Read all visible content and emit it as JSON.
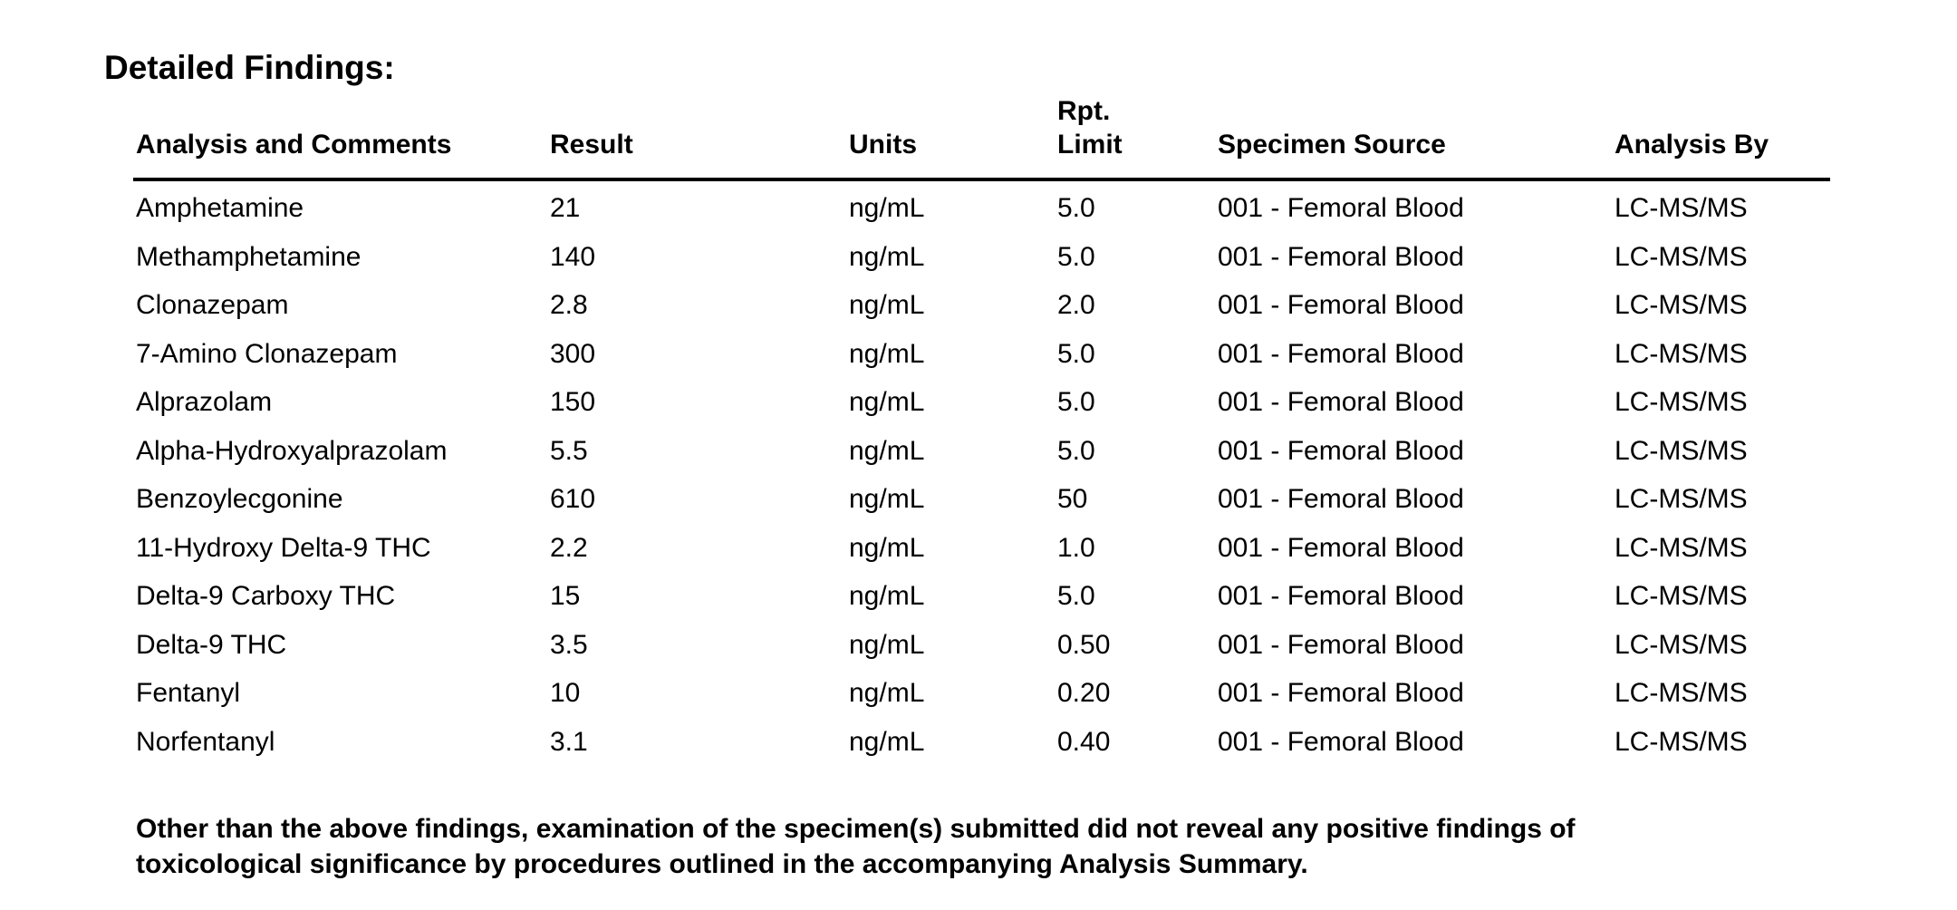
{
  "title": "Detailed Findings:",
  "colors": {
    "background": "#ffffff",
    "text": "#000000",
    "rule": "#000000"
  },
  "table": {
    "headers": {
      "analysis": "Analysis and Comments",
      "result": "Result",
      "units": "Units",
      "rpt_limit_line1": "Rpt.",
      "rpt_limit_line2": "Limit",
      "specimen_source": "Specimen Source",
      "analysis_by": "Analysis By"
    },
    "rows": [
      {
        "analysis": "Amphetamine",
        "result": "21",
        "units": "ng/mL",
        "rpt_limit": "5.0",
        "specimen_source": "001 - Femoral Blood",
        "analysis_by": "LC-MS/MS"
      },
      {
        "analysis": "Methamphetamine",
        "result": "140",
        "units": "ng/mL",
        "rpt_limit": "5.0",
        "specimen_source": "001 - Femoral Blood",
        "analysis_by": "LC-MS/MS"
      },
      {
        "analysis": "Clonazepam",
        "result": "2.8",
        "units": "ng/mL",
        "rpt_limit": "2.0",
        "specimen_source": "001 - Femoral Blood",
        "analysis_by": "LC-MS/MS"
      },
      {
        "analysis": "7-Amino Clonazepam",
        "result": "300",
        "units": "ng/mL",
        "rpt_limit": "5.0",
        "specimen_source": "001 - Femoral Blood",
        "analysis_by": "LC-MS/MS"
      },
      {
        "analysis": "Alprazolam",
        "result": "150",
        "units": "ng/mL",
        "rpt_limit": "5.0",
        "specimen_source": "001 - Femoral Blood",
        "analysis_by": "LC-MS/MS"
      },
      {
        "analysis": "Alpha-Hydroxyalprazolam",
        "result": "5.5",
        "units": "ng/mL",
        "rpt_limit": "5.0",
        "specimen_source": "001 - Femoral Blood",
        "analysis_by": "LC-MS/MS"
      },
      {
        "analysis": "Benzoylecgonine",
        "result": "610",
        "units": "ng/mL",
        "rpt_limit": "50",
        "specimen_source": "001 - Femoral Blood",
        "analysis_by": "LC-MS/MS"
      },
      {
        "analysis": "11-Hydroxy Delta-9 THC",
        "result": "2.2",
        "units": "ng/mL",
        "rpt_limit": "1.0",
        "specimen_source": "001 - Femoral Blood",
        "analysis_by": "LC-MS/MS"
      },
      {
        "analysis": "Delta-9 Carboxy THC",
        "result": "15",
        "units": "ng/mL",
        "rpt_limit": "5.0",
        "specimen_source": "001 - Femoral Blood",
        "analysis_by": "LC-MS/MS"
      },
      {
        "analysis": "Delta-9 THC",
        "result": "3.5",
        "units": "ng/mL",
        "rpt_limit": "0.50",
        "specimen_source": "001 - Femoral Blood",
        "analysis_by": "LC-MS/MS"
      },
      {
        "analysis": "Fentanyl",
        "result": "10",
        "units": "ng/mL",
        "rpt_limit": "0.20",
        "specimen_source": "001 - Femoral Blood",
        "analysis_by": "LC-MS/MS"
      },
      {
        "analysis": "Norfentanyl",
        "result": "3.1",
        "units": "ng/mL",
        "rpt_limit": "0.40",
        "specimen_source": "001 - Femoral Blood",
        "analysis_by": "LC-MS/MS"
      }
    ]
  },
  "footer": {
    "line1": "Other than the above findings, examination of the specimen(s) submitted did not reveal any positive findings of",
    "line2": "toxicological significance by procedures outlined in the accompanying Analysis Summary."
  }
}
